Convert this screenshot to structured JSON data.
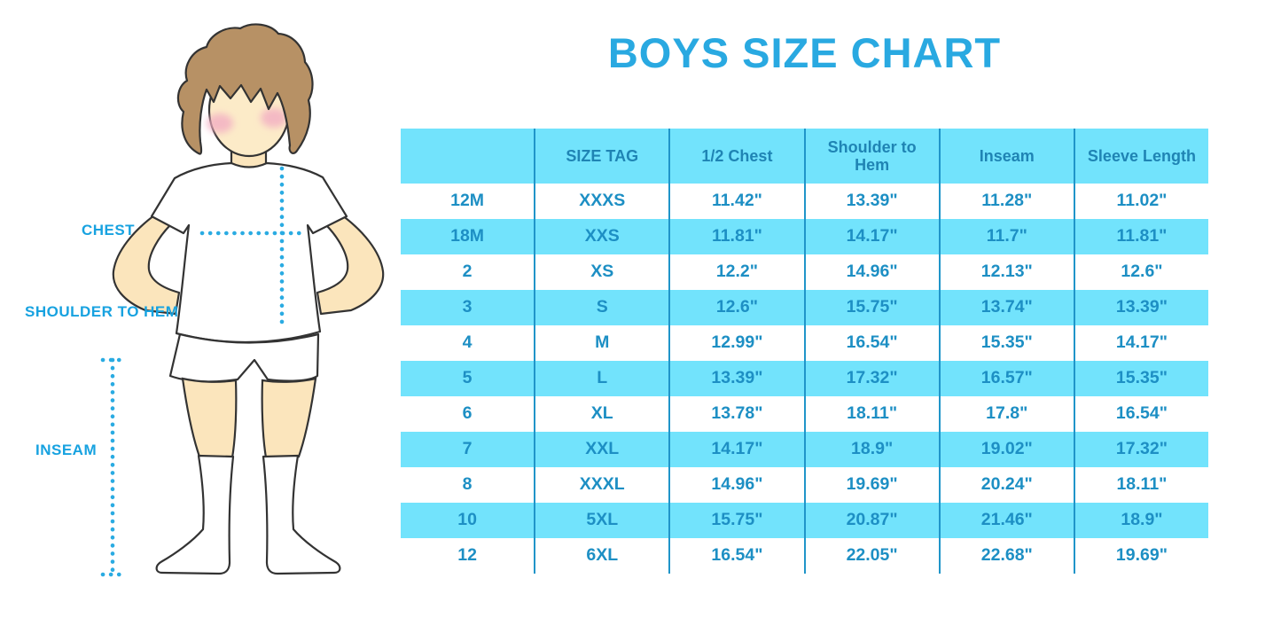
{
  "title": "BOYS SIZE CHART",
  "colors": {
    "title_blue": "#29a9e1",
    "table_stripe_cyan": "#72e3fc",
    "table_divider_blue": "#2095c9",
    "table_header_text": "#1f84b4",
    "table_body_text": "#1d8fc4",
    "figure_label_blue": "#17a2e0",
    "dotted_line_blue": "#2aabe2",
    "skin": "#fbe5bc",
    "hair_brown": "#b79165"
  },
  "figure": {
    "labels": {
      "chest": "CHEST",
      "shoulder_to_hem": "SHOULDER TO HEM",
      "inseam": "INSEAM"
    }
  },
  "chart_data": {
    "type": "table",
    "title": "BOYS SIZE CHART",
    "columns": [
      "",
      "SIZE TAG",
      "1/2 Chest",
      "Shoulder to Hem",
      "Inseam",
      "Sleeve Length"
    ],
    "rows": [
      [
        "12M",
        "XXXS",
        "11.42\"",
        "13.39\"",
        "11.28\"",
        "11.02\""
      ],
      [
        "18M",
        "XXS",
        "11.81\"",
        "14.17\"",
        "11.7\"",
        "11.81\""
      ],
      [
        "2",
        "XS",
        "12.2\"",
        "14.96\"",
        "12.13\"",
        "12.6\""
      ],
      [
        "3",
        "S",
        "12.6\"",
        "15.75\"",
        "13.74\"",
        "13.39\""
      ],
      [
        "4",
        "M",
        "12.99\"",
        "16.54\"",
        "15.35\"",
        "14.17\""
      ],
      [
        "5",
        "L",
        "13.39\"",
        "17.32\"",
        "16.57\"",
        "15.35\""
      ],
      [
        "6",
        "XL",
        "13.78\"",
        "18.11\"",
        "17.8\"",
        "16.54\""
      ],
      [
        "7",
        "XXL",
        "14.17\"",
        "18.9\"",
        "19.02\"",
        "17.32\""
      ],
      [
        "8",
        "XXXL",
        "14.96\"",
        "19.69\"",
        "20.24\"",
        "18.11\""
      ],
      [
        "10",
        "5XL",
        "15.75\"",
        "20.87\"",
        "21.46\"",
        "18.9\""
      ],
      [
        "12",
        "6XL",
        "16.54\"",
        "22.05\"",
        "22.68\"",
        "19.69\""
      ]
    ],
    "layout": {
      "striping": "header and alternating body rows cyan, starting with second body row",
      "column_dividers": "vertical solid blue lines full table height",
      "horizontal_gridlines": false
    }
  }
}
